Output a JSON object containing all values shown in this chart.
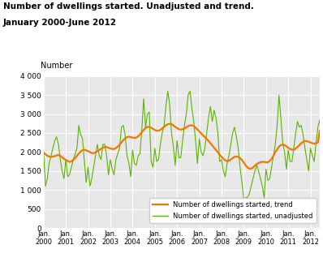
{
  "title_line1": "Number of dwellings started. Unadjusted and trend.",
  "title_line2": "January 2000-June 2012",
  "ylabel": "Number",
  "ylim": [
    0,
    4000
  ],
  "yticks": [
    0,
    500,
    1000,
    1500,
    2000,
    2500,
    3000,
    3500,
    4000
  ],
  "ytick_labels": [
    "0",
    "500",
    "1 000",
    "1 500",
    "2 000",
    "2 500",
    "3 000",
    "3 500",
    "4 000"
  ],
  "color_unadjusted": "#5ab400",
  "color_trend": "#f07800",
  "legend_trend": "Number of dwellings started, trend",
  "legend_unadjusted": "Number of dwellings started, unadjusted",
  "bg_color": "#e8e8e8",
  "unadjusted": [
    2000,
    1100,
    1300,
    1700,
    1900,
    2100,
    2300,
    2400,
    2200,
    1800,
    1500,
    1300,
    1800,
    1350,
    1400,
    1600,
    1800,
    1950,
    2100,
    2700,
    2450,
    2350,
    1750,
    1200,
    1600,
    1100,
    1300,
    1600,
    1900,
    2200,
    1900,
    1800,
    2200,
    2200,
    1900,
    1400,
    1800,
    1550,
    1400,
    1800,
    1950,
    2100,
    2650,
    2700,
    2450,
    1900,
    1700,
    1350,
    2050,
    1700,
    1650,
    1900,
    1950,
    2600,
    3400,
    2650,
    3000,
    3050,
    1750,
    1600,
    2100,
    1750,
    1800,
    2200,
    2500,
    2700,
    3200,
    3600,
    3250,
    2500,
    2150,
    1650,
    2300,
    1850,
    1850,
    2300,
    2700,
    3000,
    3500,
    3600,
    3150,
    2800,
    2300,
    1700,
    2350,
    2000,
    1900,
    2100,
    2500,
    2900,
    3200,
    2800,
    3100,
    2900,
    2500,
    1750,
    1800,
    1500,
    1350,
    1700,
    1900,
    2200,
    2500,
    2650,
    2400,
    2100,
    1600,
    1200,
    750,
    800,
    800,
    900,
    1100,
    1300,
    1500,
    1650,
    1500,
    1300,
    1100,
    800,
    1550,
    1250,
    1300,
    1600,
    1900,
    2200,
    2700,
    3500,
    2900,
    2250,
    2000,
    1550,
    2050,
    1750,
    1750,
    2100,
    2500,
    2800,
    2650,
    2700,
    2450,
    2100,
    1800,
    1500,
    2100,
    1900,
    1750,
    2250,
    2650,
    2850
  ],
  "trend": [
    1980,
    1940,
    1900,
    1880,
    1870,
    1880,
    1890,
    1910,
    1920,
    1900,
    1860,
    1820,
    1790,
    1760,
    1740,
    1750,
    1790,
    1840,
    1900,
    1960,
    2010,
    2050,
    2060,
    2040,
    2020,
    2000,
    1970,
    1970,
    1990,
    2020,
    2050,
    2080,
    2110,
    2130,
    2130,
    2110,
    2090,
    2080,
    2080,
    2100,
    2140,
    2190,
    2250,
    2310,
    2360,
    2390,
    2400,
    2390,
    2380,
    2370,
    2380,
    2410,
    2460,
    2520,
    2580,
    2630,
    2660,
    2660,
    2640,
    2610,
    2580,
    2560,
    2560,
    2580,
    2620,
    2660,
    2700,
    2730,
    2740,
    2730,
    2700,
    2660,
    2630,
    2600,
    2590,
    2600,
    2620,
    2650,
    2680,
    2700,
    2700,
    2680,
    2640,
    2590,
    2540,
    2490,
    2440,
    2390,
    2340,
    2290,
    2230,
    2170,
    2110,
    2050,
    1990,
    1930,
    1870,
    1820,
    1780,
    1760,
    1770,
    1800,
    1840,
    1870,
    1880,
    1870,
    1840,
    1790,
    1720,
    1650,
    1590,
    1560,
    1560,
    1590,
    1640,
    1680,
    1710,
    1730,
    1740,
    1740,
    1730,
    1730,
    1760,
    1820,
    1900,
    1990,
    2070,
    2140,
    2180,
    2190,
    2180,
    2150,
    2110,
    2080,
    2060,
    2060,
    2090,
    2130,
    2180,
    2230,
    2270,
    2290,
    2290,
    2270,
    2250,
    2230,
    2220,
    2230,
    2250,
    2560
  ],
  "xtick_years": [
    2000,
    2001,
    2002,
    2003,
    2004,
    2005,
    2006,
    2007,
    2008,
    2009,
    2010,
    2011,
    2012
  ]
}
